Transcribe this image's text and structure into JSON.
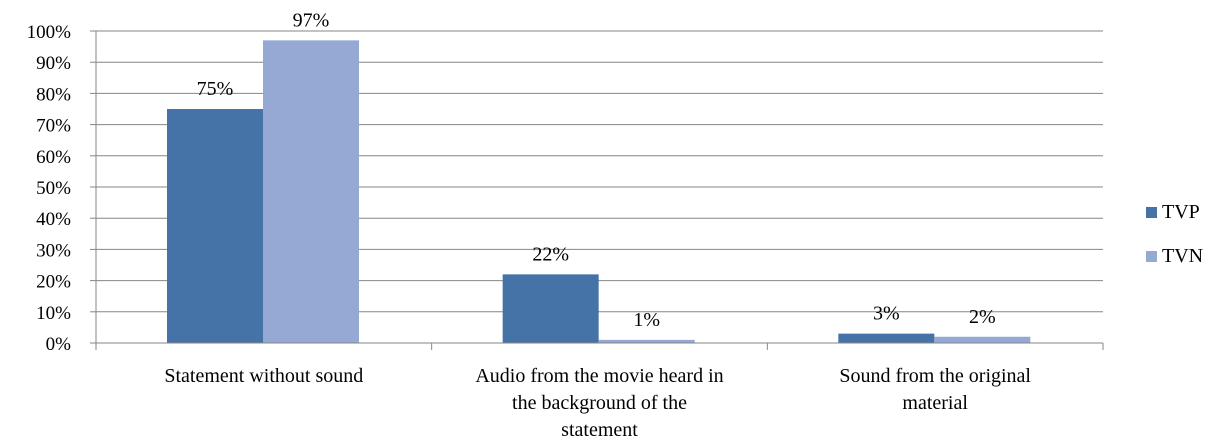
{
  "chart_data": {
    "type": "bar",
    "categories": [
      [
        "Statement without sound"
      ],
      [
        "Audio from the movie heard in",
        "the background of the",
        "statement"
      ],
      [
        "Sound from the original",
        "material"
      ]
    ],
    "series": [
      {
        "name": "TVP",
        "color": "#4572a7",
        "values": [
          75,
          22,
          3
        ],
        "labels": [
          "75%",
          "22%",
          "3%"
        ]
      },
      {
        "name": "TVN",
        "color": "#95a9d4",
        "values": [
          97,
          1,
          2
        ],
        "labels": [
          "97%",
          "1%",
          "2%"
        ]
      }
    ],
    "ylim": [
      0,
      100
    ],
    "yticks": [
      "0%",
      "10%",
      "20%",
      "30%",
      "40%",
      "50%",
      "60%",
      "70%",
      "80%",
      "90%",
      "100%"
    ],
    "grid": true,
    "legend": "right"
  }
}
